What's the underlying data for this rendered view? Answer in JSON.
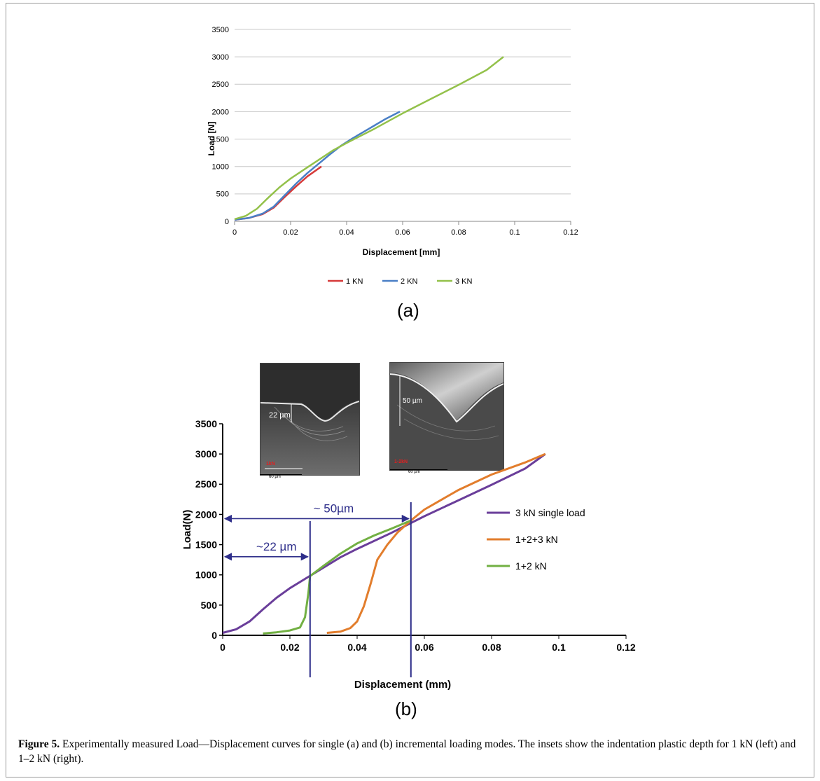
{
  "figure": {
    "panel_a_label": "(a)",
    "panel_b_label": "(b)",
    "caption_prefix": "Figure 5.",
    "caption_text": " Experimentally measured Load—Displacement curves for single (a) and (b) incremental loading modes. The insets show the indentation plastic depth for 1 kN (left) and 1–2 kN (right)."
  },
  "chart_data": [
    {
      "type": "line",
      "xlabel": "Displacement [mm]",
      "ylabel": "Load [N]",
      "xlim": [
        0,
        0.12
      ],
      "ylim": [
        0,
        3500
      ],
      "xticks": [
        "0",
        "0.02",
        "0.04",
        "0.06",
        "0.08",
        "0.1",
        "0.12"
      ],
      "yticks": [
        "0",
        "500",
        "1000",
        "1500",
        "2000",
        "2500",
        "3000",
        "3500"
      ],
      "grid": "horizontal",
      "legend": "bottom",
      "series": [
        {
          "name": "1 KN",
          "color": "#d63b3b",
          "points": [
            [
              0.0,
              30
            ],
            [
              0.005,
              60
            ],
            [
              0.01,
              130
            ],
            [
              0.014,
              250
            ],
            [
              0.018,
              450
            ],
            [
              0.022,
              640
            ],
            [
              0.026,
              820
            ],
            [
              0.031,
              1000
            ]
          ]
        },
        {
          "name": "2 KN",
          "color": "#4a7fc6",
          "points": [
            [
              0.0,
              30
            ],
            [
              0.005,
              60
            ],
            [
              0.01,
              140
            ],
            [
              0.014,
              270
            ],
            [
              0.018,
              480
            ],
            [
              0.022,
              690
            ],
            [
              0.026,
              880
            ],
            [
              0.03,
              1050
            ],
            [
              0.034,
              1220
            ],
            [
              0.038,
              1380
            ],
            [
              0.042,
              1510
            ],
            [
              0.046,
              1630
            ],
            [
              0.05,
              1750
            ],
            [
              0.054,
              1870
            ],
            [
              0.059,
              2000
            ]
          ]
        },
        {
          "name": "3 KN",
          "color": "#93c14a",
          "points": [
            [
              0.0,
              40
            ],
            [
              0.004,
              100
            ],
            [
              0.008,
              230
            ],
            [
              0.012,
              430
            ],
            [
              0.016,
              620
            ],
            [
              0.02,
              780
            ],
            [
              0.025,
              950
            ],
            [
              0.03,
              1120
            ],
            [
              0.035,
              1290
            ],
            [
              0.04,
              1430
            ],
            [
              0.05,
              1690
            ],
            [
              0.06,
              1970
            ],
            [
              0.07,
              2230
            ],
            [
              0.08,
              2490
            ],
            [
              0.09,
              2760
            ],
            [
              0.096,
              3000
            ]
          ]
        }
      ]
    },
    {
      "type": "line",
      "xlabel": "Displacement (mm)",
      "ylabel": "Load(N)",
      "xlim": [
        0,
        0.12
      ],
      "ylim": [
        0,
        3500
      ],
      "xticks": [
        "0",
        "0.02",
        "0.04",
        "0.06",
        "0.08",
        "0.1",
        "0.12"
      ],
      "yticks": [
        "0",
        "500",
        "1000",
        "1500",
        "2000",
        "2500",
        "3000",
        "3500"
      ],
      "grid": "none",
      "legend": "right",
      "series": [
        {
          "name": "3 kN single load",
          "color": "#6a3e9a",
          "points": [
            [
              0.0,
              40
            ],
            [
              0.004,
              100
            ],
            [
              0.008,
              230
            ],
            [
              0.012,
              430
            ],
            [
              0.016,
              620
            ],
            [
              0.02,
              780
            ],
            [
              0.025,
              950
            ],
            [
              0.03,
              1120
            ],
            [
              0.035,
              1290
            ],
            [
              0.04,
              1430
            ],
            [
              0.05,
              1690
            ],
            [
              0.06,
              1970
            ],
            [
              0.07,
              2230
            ],
            [
              0.08,
              2490
            ],
            [
              0.09,
              2760
            ],
            [
              0.096,
              3000
            ]
          ]
        },
        {
          "name": "1+2+3 kN",
          "color": "#e27d2c",
          "points": [
            [
              0.031,
              40
            ],
            [
              0.035,
              60
            ],
            [
              0.038,
              120
            ],
            [
              0.04,
              230
            ],
            [
              0.042,
              480
            ],
            [
              0.044,
              850
            ],
            [
              0.046,
              1250
            ],
            [
              0.049,
              1500
            ],
            [
              0.052,
              1700
            ],
            [
              0.056,
              1900
            ],
            [
              0.06,
              2080
            ],
            [
              0.07,
              2400
            ],
            [
              0.08,
              2660
            ],
            [
              0.09,
              2860
            ],
            [
              0.096,
              3000
            ]
          ]
        },
        {
          "name": "1+2 kN",
          "color": "#72b043",
          "points": [
            [
              0.012,
              30
            ],
            [
              0.016,
              50
            ],
            [
              0.02,
              80
            ],
            [
              0.023,
              130
            ],
            [
              0.0245,
              300
            ],
            [
              0.0255,
              700
            ],
            [
              0.026,
              980
            ],
            [
              0.03,
              1150
            ],
            [
              0.035,
              1350
            ],
            [
              0.04,
              1520
            ],
            [
              0.045,
              1650
            ],
            [
              0.05,
              1760
            ],
            [
              0.056,
              1900
            ]
          ]
        }
      ],
      "annotations": [
        {
          "text": "~22 µm",
          "x_from": 0,
          "x_to": 0.026,
          "y": 1300
        },
        {
          "text": "~ 50µm",
          "x_from": 0,
          "x_to": 0.056,
          "y": 1930
        }
      ],
      "vlines": [
        {
          "x": 0.026,
          "color": "#2e2e8a"
        },
        {
          "x": 0.056,
          "color": "#2e2e8a"
        }
      ],
      "insets": [
        {
          "measure_label": "22 µm",
          "load_label": "1kN",
          "scale_label": "60 µm"
        },
        {
          "measure_label": "50 µm",
          "load_label": "1-2kN",
          "scale_label": "60 µm"
        }
      ]
    }
  ]
}
